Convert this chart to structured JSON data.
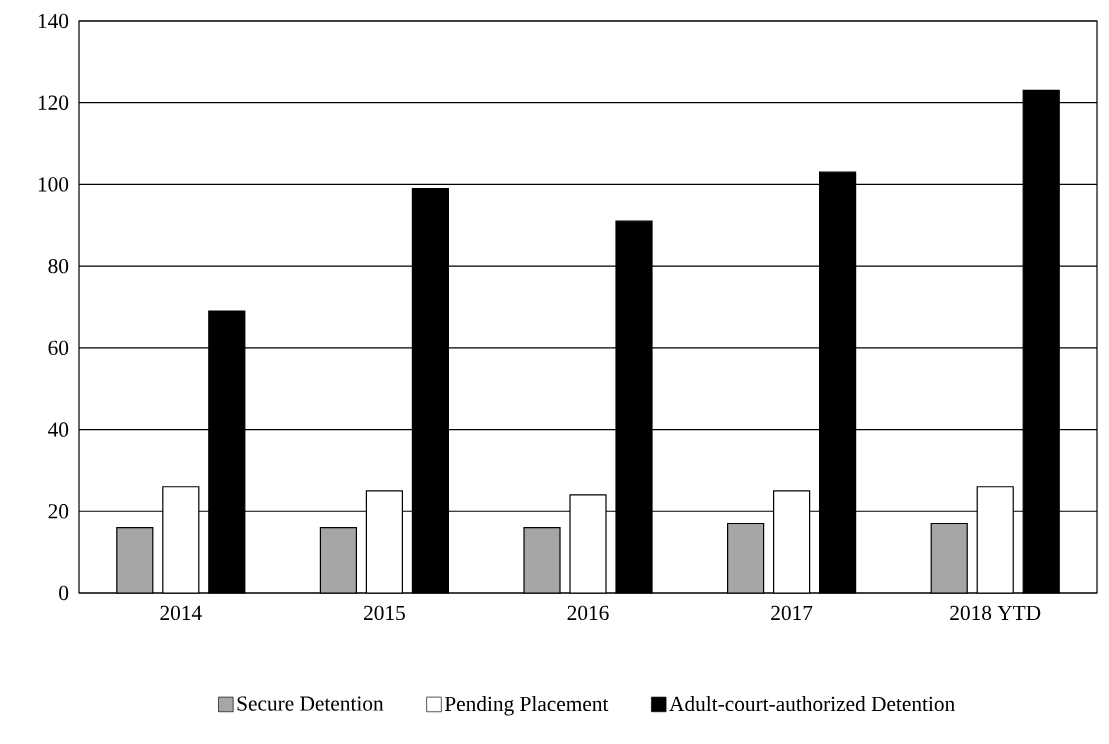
{
  "chart_data": {
    "type": "bar",
    "categories": [
      "2014",
      "2015",
      "2016",
      "2017",
      "2018 YTD"
    ],
    "series": [
      {
        "name": "Secure Detention",
        "color": "#a6a6a6",
        "values": [
          16,
          16,
          16,
          17,
          17
        ]
      },
      {
        "name": "Pending Placement",
        "color": "#ffffff",
        "values": [
          26,
          25,
          24,
          25,
          26
        ]
      },
      {
        "name": "Adult-court-authorized Detention",
        "color": "#000000",
        "values": [
          69,
          99,
          91,
          103,
          123
        ]
      }
    ],
    "ylim": [
      0,
      140
    ],
    "yticks": [
      0,
      20,
      40,
      60,
      80,
      100,
      120,
      140
    ],
    "grid": "y",
    "legend": "bottom"
  }
}
